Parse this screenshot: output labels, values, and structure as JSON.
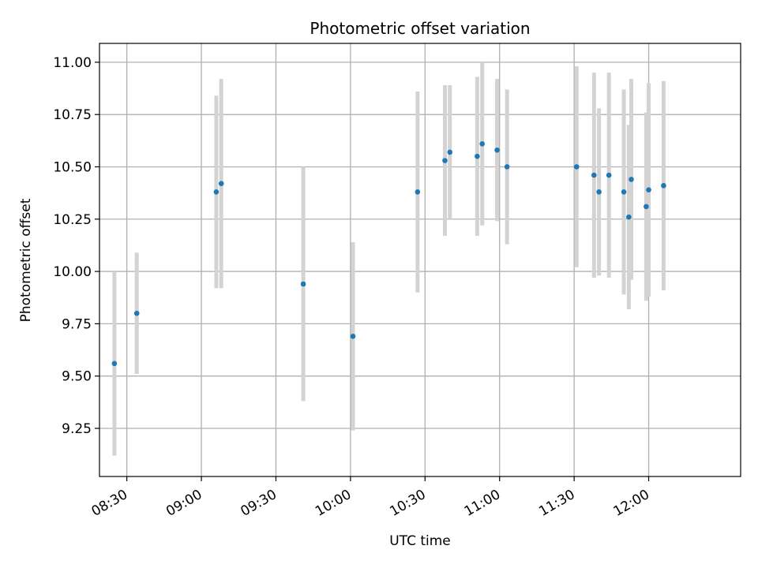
{
  "chart_data": {
    "type": "scatter",
    "title": "Photometric offset variation",
    "xlabel": "UTC time",
    "ylabel": "Photometric offset",
    "x_is_time": true,
    "xlim": [
      "08:19",
      "12:37"
    ],
    "ylim": [
      9.02,
      11.09
    ],
    "grid": true,
    "yticks": [
      9.25,
      9.5,
      9.75,
      10.0,
      10.25,
      10.5,
      10.75,
      11.0
    ],
    "ytick_labels": [
      "9.25",
      "9.50",
      "9.75",
      "10.00",
      "10.25",
      "10.50",
      "10.75",
      "11.00"
    ],
    "xticks": [
      "08:30",
      "09:00",
      "09:30",
      "10:00",
      "10:30",
      "11:00",
      "11:30",
      "12:00"
    ],
    "colors": {
      "point": "#1f77b4",
      "errorbar": "#d3d3d3",
      "grid": "#b0b0b0"
    },
    "points": [
      {
        "x": "08:25",
        "y": 9.56,
        "err": 0.44
      },
      {
        "x": "08:34",
        "y": 9.8,
        "err": 0.29
      },
      {
        "x": "09:06",
        "y": 10.38,
        "err": 0.46
      },
      {
        "x": "09:08",
        "y": 10.42,
        "err": 0.5
      },
      {
        "x": "09:41",
        "y": 9.94,
        "err": 0.56
      },
      {
        "x": "10:01",
        "y": 9.69,
        "err": 0.45
      },
      {
        "x": "10:27",
        "y": 10.38,
        "err": 0.48
      },
      {
        "x": "10:38",
        "y": 10.53,
        "err": 0.36
      },
      {
        "x": "10:40",
        "y": 10.57,
        "err": 0.32
      },
      {
        "x": "10:51",
        "y": 10.55,
        "err": 0.38
      },
      {
        "x": "10:53",
        "y": 10.61,
        "err": 0.39
      },
      {
        "x": "10:59",
        "y": 10.58,
        "err": 0.34
      },
      {
        "x": "11:03",
        "y": 10.5,
        "err": 0.37
      },
      {
        "x": "11:31",
        "y": 10.5,
        "err": 0.48
      },
      {
        "x": "11:38",
        "y": 10.46,
        "err": 0.49
      },
      {
        "x": "11:40",
        "y": 10.38,
        "err": 0.4
      },
      {
        "x": "11:44",
        "y": 10.46,
        "err": 0.49
      },
      {
        "x": "11:50",
        "y": 10.38,
        "err": 0.49
      },
      {
        "x": "11:52",
        "y": 10.26,
        "err": 0.44
      },
      {
        "x": "11:53",
        "y": 10.44,
        "err": 0.48
      },
      {
        "x": "11:59",
        "y": 10.31,
        "err": 0.45
      },
      {
        "x": "12:00",
        "y": 10.39,
        "err": 0.51
      },
      {
        "x": "12:06",
        "y": 10.41,
        "err": 0.5
      }
    ]
  }
}
